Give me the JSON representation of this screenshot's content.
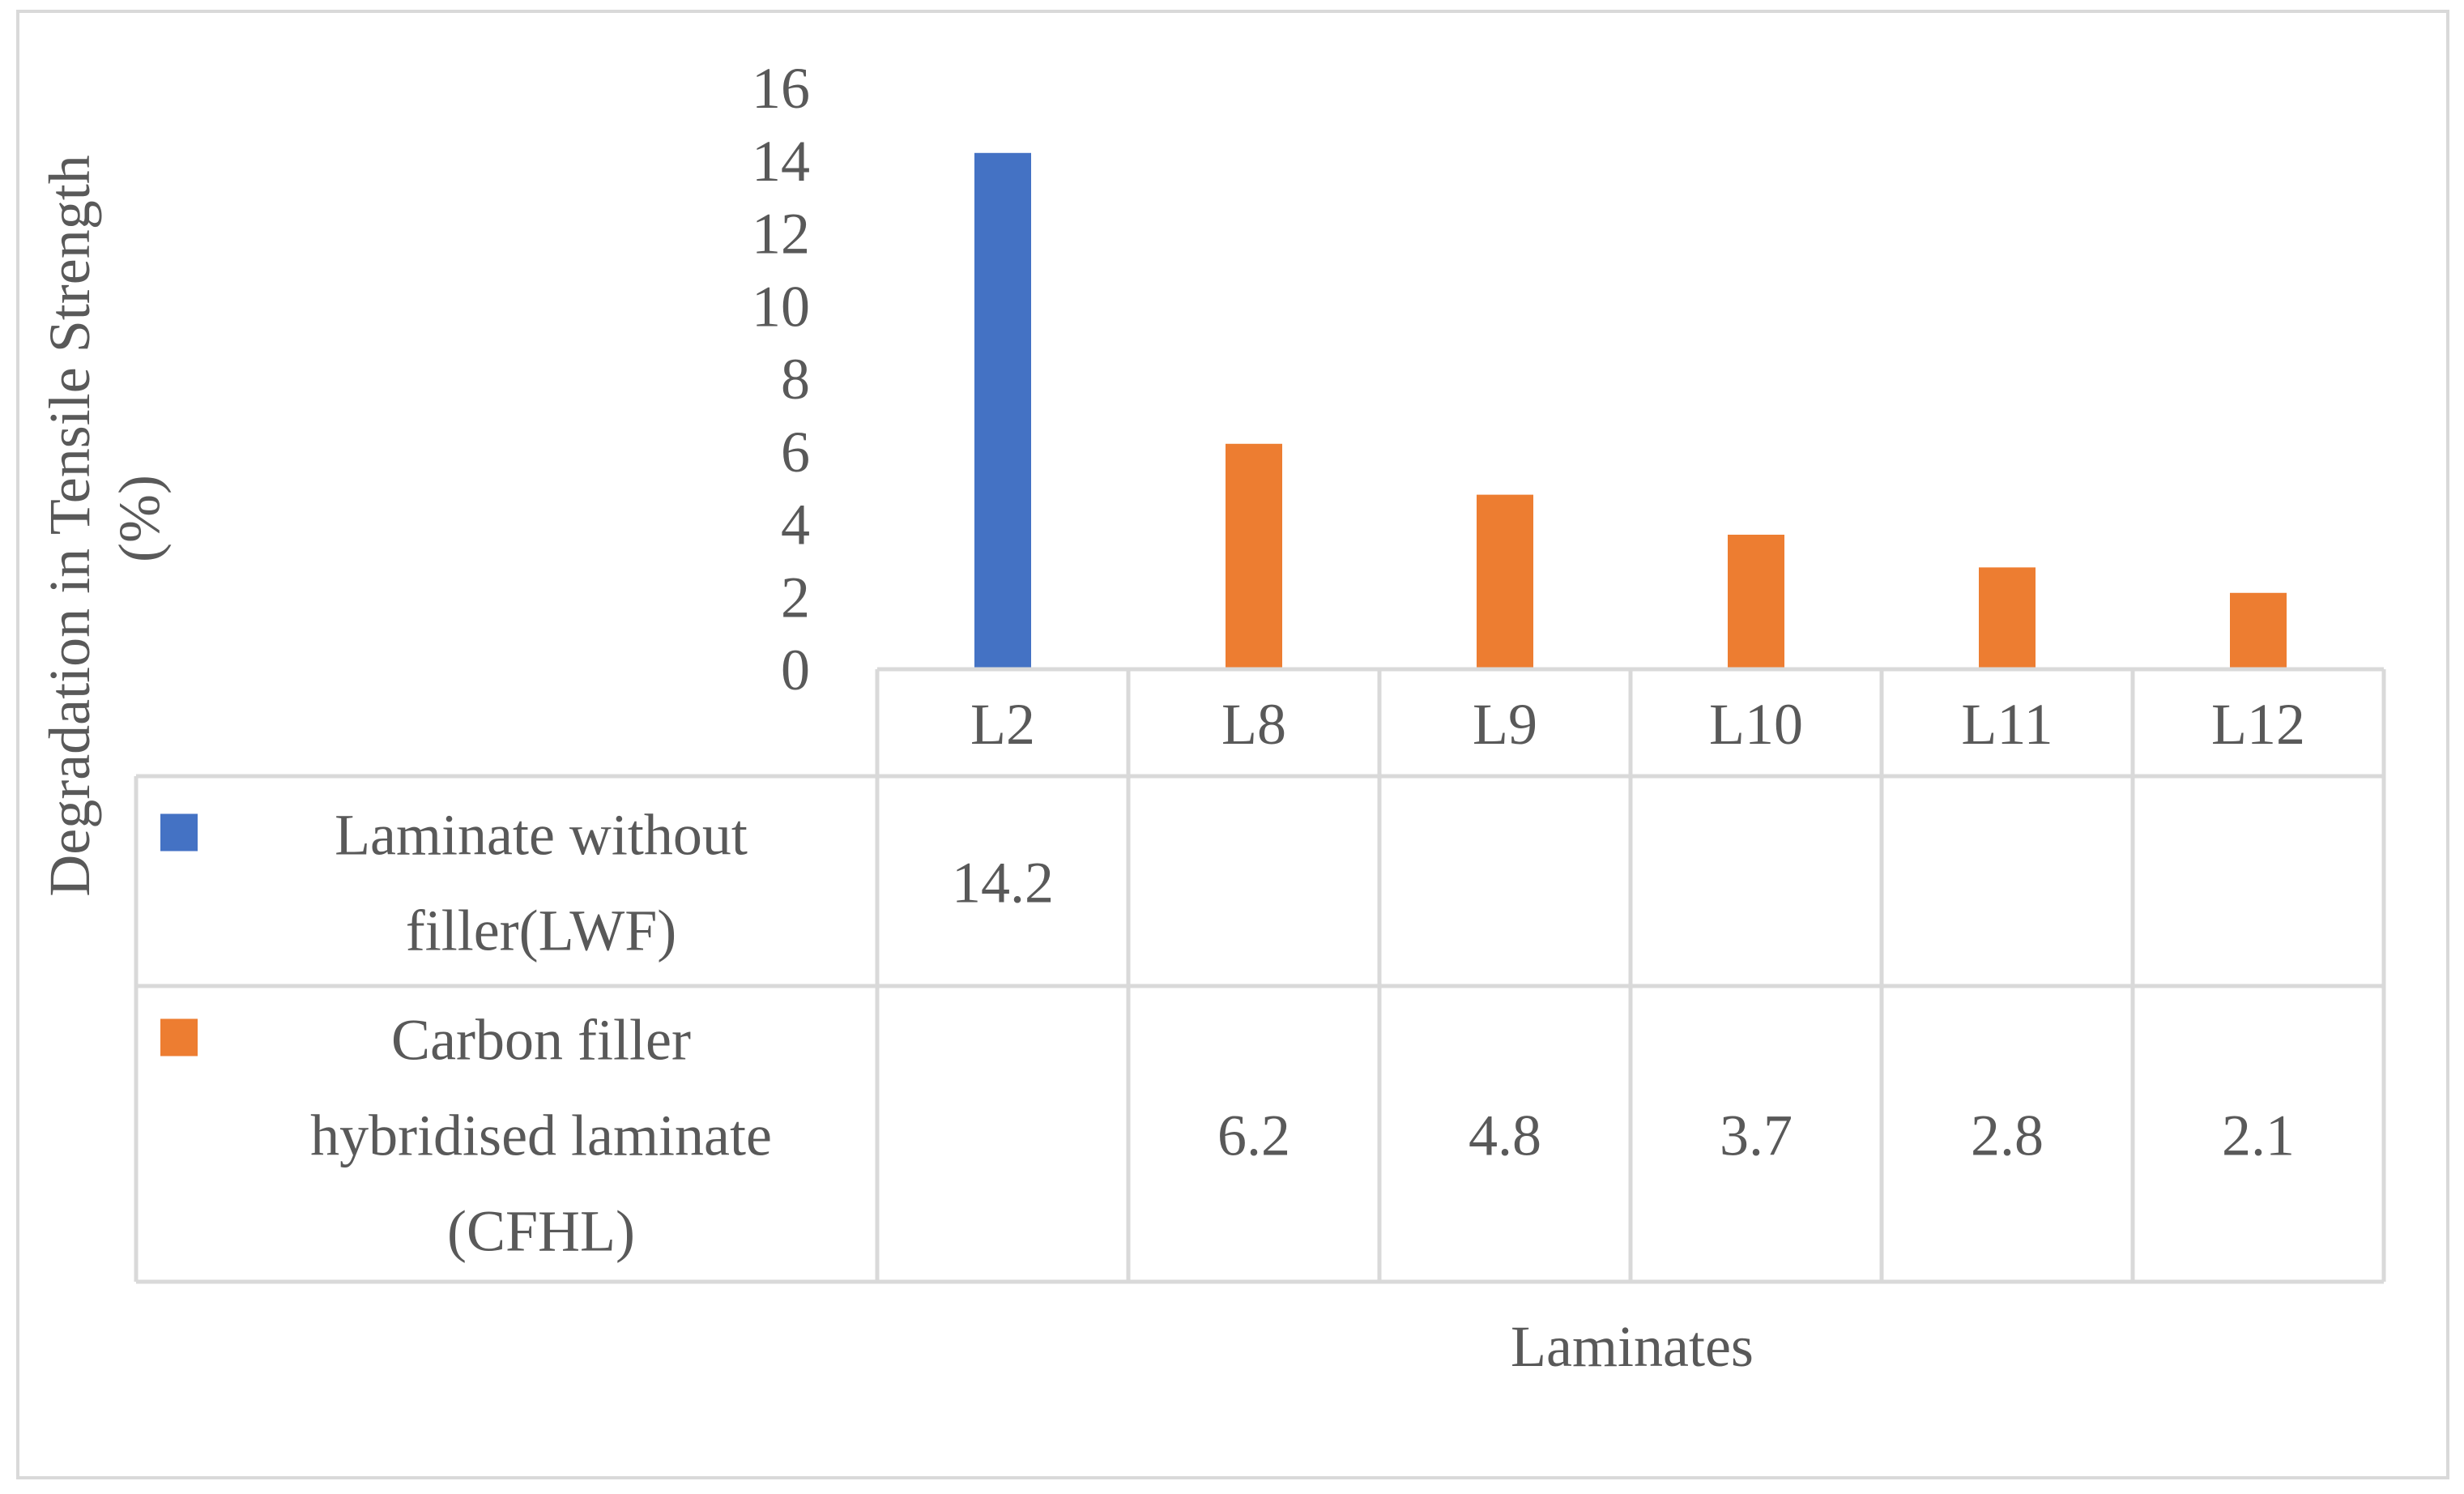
{
  "colors": {
    "series1": "#4472C4",
    "series2": "#ED7D31",
    "text": "#595959",
    "grid": "#D9D9D9"
  },
  "chart_data": {
    "type": "bar",
    "title": "",
    "xlabel": "Laminates",
    "ylabel": "Degradation in Tensile Strength (%)",
    "ylabel_lines": [
      "Degradation in Tensile Strength",
      "(%)"
    ],
    "ylim": [
      0,
      16
    ],
    "yticks": [
      0,
      2,
      4,
      6,
      8,
      10,
      12,
      14,
      16
    ],
    "categories": [
      "L2",
      "L8",
      "L9",
      "L10",
      "L11",
      "L12"
    ],
    "series": [
      {
        "name": "Laminate without filler(LWF)",
        "label_lines": [
          "Laminate without",
          "filler(LWF)"
        ],
        "color": "#4472C4",
        "values": [
          14.2,
          null,
          null,
          null,
          null,
          null
        ],
        "table_values": [
          "14.2",
          "",
          "",
          "",
          "",
          ""
        ]
      },
      {
        "name": "Carbon filler hybridised laminate (CFHL)",
        "label_lines": [
          "Carbon filler",
          "hybridised laminate",
          "(CFHL)"
        ],
        "color": "#ED7D31",
        "values": [
          null,
          6.2,
          4.8,
          3.7,
          2.8,
          2.1
        ],
        "table_values": [
          "",
          "6.2",
          "4.8",
          "3.7",
          "2.8",
          "2.1"
        ]
      }
    ],
    "legend": "data-table"
  }
}
